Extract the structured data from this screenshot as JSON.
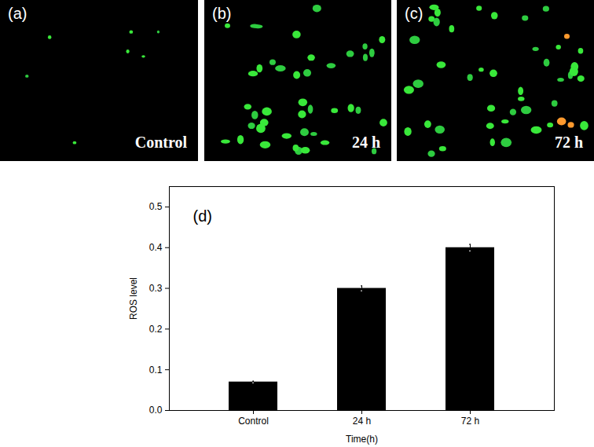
{
  "chart_data": {
    "type": "bar",
    "annotation": "(d)",
    "xlabel": "Time(h)",
    "ylabel": "ROS level",
    "categories": [
      "Control",
      "24 h",
      "72 h"
    ],
    "values": [
      0.07,
      0.3,
      0.4
    ],
    "errors": [
      0.002,
      0.006,
      0.008
    ],
    "color": "#000000",
    "ylim": [
      0,
      0.55
    ],
    "yticks": [
      {
        "value": 0,
        "label": "0.0"
      },
      0.1,
      0.2,
      0.3,
      0.4,
      0.5
    ],
    "grid": false
  },
  "images": [
    {
      "label": "(a)",
      "caption": "Control"
    },
    {
      "label": "(b)",
      "caption": "24 h"
    },
    {
      "label": "(c)",
      "caption": "72 h"
    }
  ]
}
